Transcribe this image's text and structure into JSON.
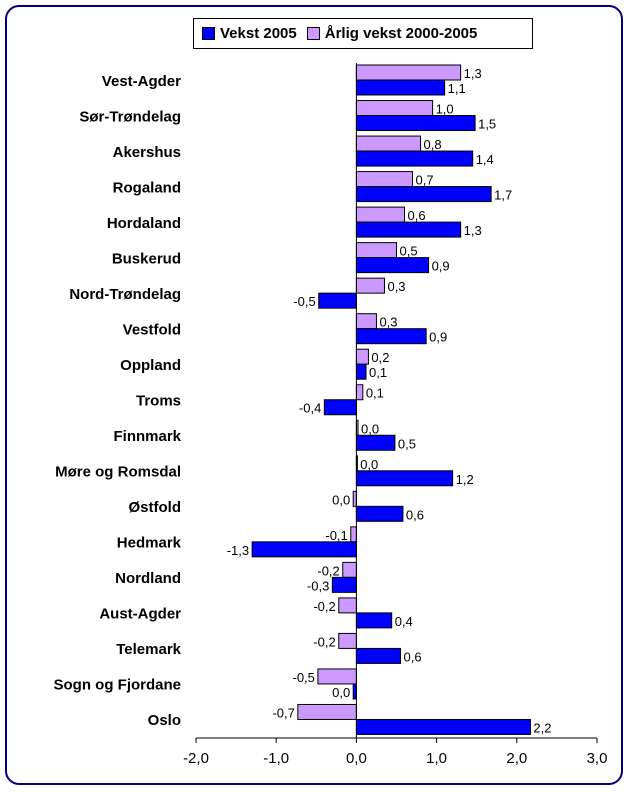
{
  "colors": {
    "vekst_2005": "#0000ff",
    "arlig_vekst": "#cc99ff",
    "frame": "#000080"
  },
  "legend": {
    "vekst_2005": "Vekst 2005",
    "arlig_vekst": "Årlig vekst 2000-2005"
  },
  "chart_data": {
    "type": "bar",
    "orientation": "horizontal",
    "categories": [
      "Vest-Agder",
      "Sør-Trøndelag",
      "Akershus",
      "Rogaland",
      "Hordaland",
      "Buskerud",
      "Nord-Trøndelag",
      "Vestfold",
      "Oppland",
      "Troms",
      "Finnmark",
      "Møre og Romsdal",
      "Østfold",
      "Hedmark",
      "Nordland",
      "Aust-Agder",
      "Telemark",
      "Sogn og Fjordane",
      "Oslo"
    ],
    "series": [
      {
        "name": "Årlig vekst 2000-2005",
        "values": [
          1.3,
          0.95,
          0.8,
          0.7,
          0.6,
          0.5,
          0.35,
          0.25,
          0.15,
          0.08,
          0.02,
          0.01,
          -0.04,
          -0.07,
          -0.17,
          -0.22,
          -0.22,
          -0.48,
          -0.73
        ],
        "labels": [
          "1,3",
          "1,0",
          "0,8",
          "0,7",
          "0,6",
          "0,5",
          "0,3",
          "0,3",
          "0,2",
          "0,1",
          "0,0",
          "0,0",
          "0,0",
          "-0,1",
          "-0,2",
          "-0,2",
          "-0,2",
          "-0,5",
          "-0,7"
        ]
      },
      {
        "name": "Vekst 2005",
        "values": [
          1.1,
          1.48,
          1.45,
          1.68,
          1.3,
          0.9,
          -0.47,
          0.87,
          0.12,
          -0.4,
          0.48,
          1.2,
          0.58,
          -1.3,
          -0.3,
          0.44,
          0.55,
          -0.04,
          2.17
        ],
        "labels": [
          "1,1",
          "1,5",
          "1,4",
          "1,7",
          "1,3",
          "0,9",
          "-0,5",
          "0,9",
          "0,1",
          "-0,4",
          "0,5",
          "1,2",
          "0,6",
          "-1,3",
          "-0,3",
          "0,4",
          "0,6",
          "0,0",
          "2,2"
        ]
      }
    ],
    "xlim": [
      -2,
      3
    ],
    "xticks": [
      -2,
      -1,
      0,
      1,
      2,
      3
    ],
    "xtick_labels": [
      "-2,0",
      "-1,0",
      "0,0",
      "1,0",
      "2,0",
      "3,0"
    ],
    "legend_position": "top",
    "grid": false
  }
}
